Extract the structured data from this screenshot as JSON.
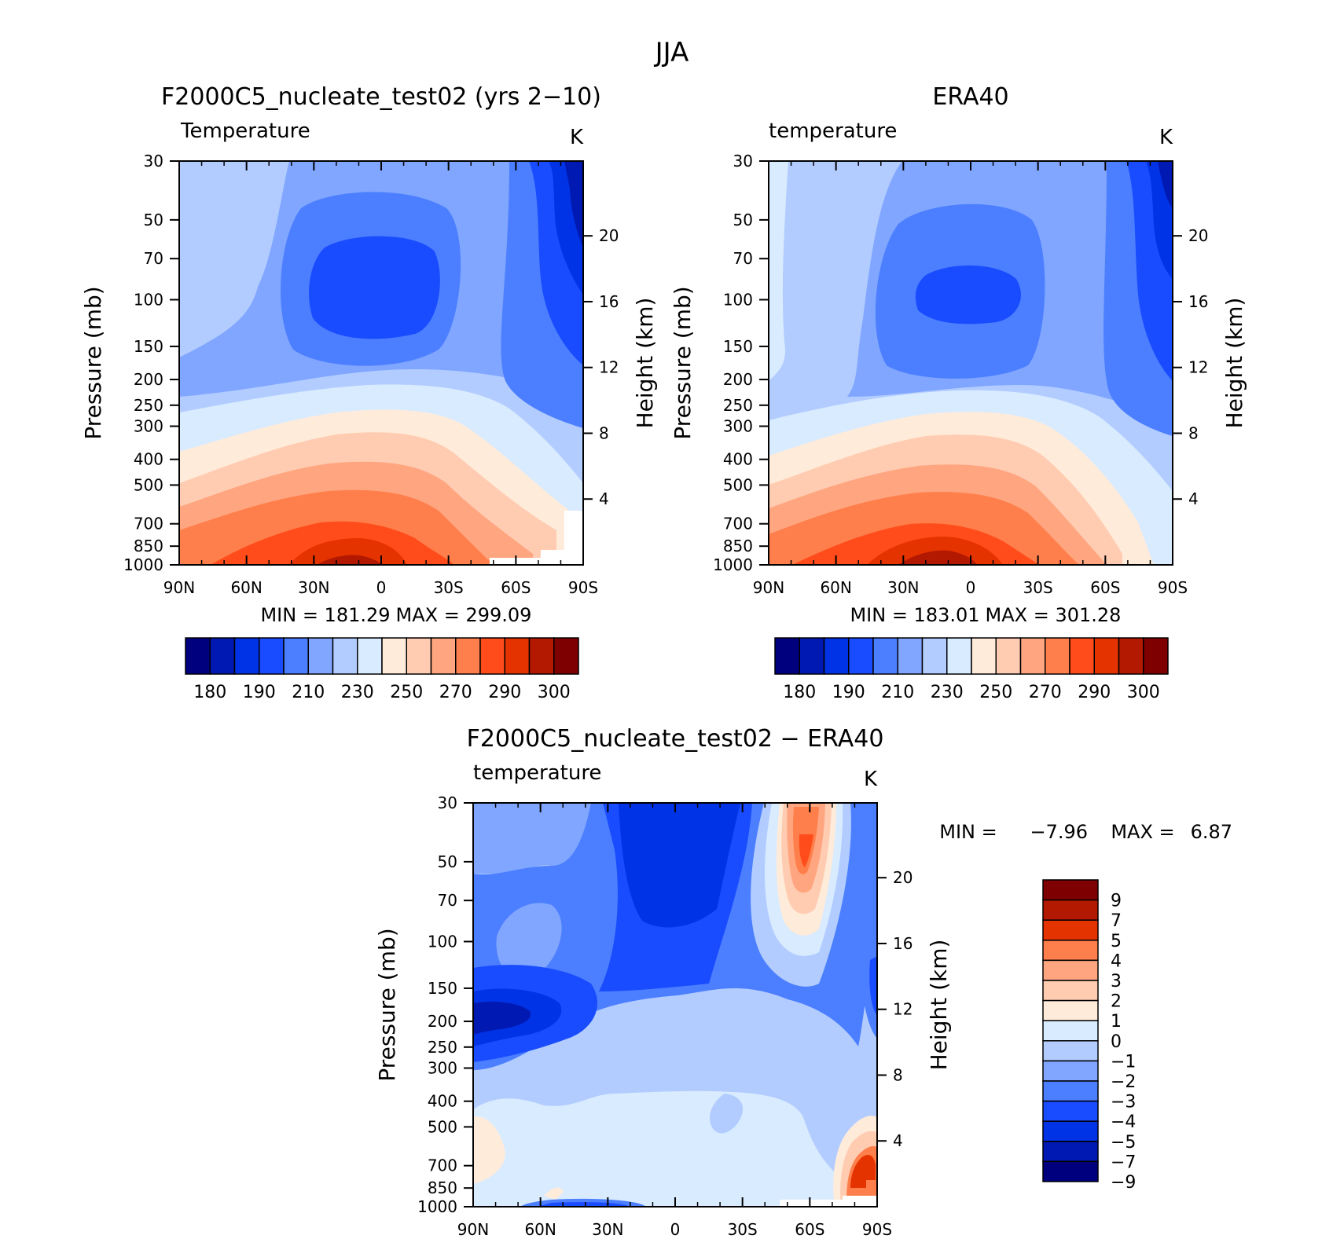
{
  "figure_title": "JJA",
  "colors": {
    "temperature_scale": [
      "#00007f",
      "#0019b2",
      "#0033e5",
      "#1a4cff",
      "#4c7fff",
      "#80a6ff",
      "#b2ccff",
      "#d9ebff",
      "#ffebd9",
      "#ffccb2",
      "#ffa680",
      "#ff7f4c",
      "#ff4c1a",
      "#e53300",
      "#b21900",
      "#7f0000"
    ],
    "difference_scale": [
      "#00007f",
      "#0019b2",
      "#0033e5",
      "#1a4cff",
      "#4c7fff",
      "#80a6ff",
      "#b2ccff",
      "#d9ebff",
      "#ffebd9",
      "#ffccb2",
      "#ffa680",
      "#ff7f4c",
      "#e53300",
      "#b21900",
      "#7f0000"
    ]
  },
  "chart_data": [
    {
      "id": "model",
      "type": "heatmap",
      "title": "F2000C5_nucleate_test02 (yrs 2−10)",
      "variable": "Temperature",
      "units": "K",
      "xlabel": "",
      "ylabel": "Pressure (mb)",
      "y2label": "Height (km)",
      "x_ticks": [
        "90N",
        "60N",
        "30N",
        "0",
        "30S",
        "60S",
        "90S"
      ],
      "y_ticks": [
        30,
        50,
        70,
        100,
        150,
        200,
        250,
        300,
        400,
        500,
        700,
        850,
        1000
      ],
      "y2_ticks": [
        20,
        16,
        12,
        8,
        4
      ],
      "min_label": "MIN  =  181.29",
      "max_label": "MAX  =  299.09",
      "min": 181.29,
      "max": 299.09,
      "colorbar_labels": [
        "180",
        "190",
        "210",
        "230",
        "250",
        "270",
        "290",
        "300"
      ],
      "sample_field": {
        "lat": [
          "90N",
          "60N",
          "30N",
          "0",
          "30S",
          "60S",
          "90S"
        ],
        "levels": [
          30,
          100,
          200,
          500,
          850,
          1000
        ],
        "values": [
          [
            220,
            215,
            205,
            205,
            210,
            200,
            190
          ],
          [
            215,
            210,
            195,
            192,
            205,
            200,
            185
          ],
          [
            220,
            215,
            210,
            210,
            215,
            205,
            200
          ],
          [
            245,
            250,
            258,
            258,
            255,
            240,
            230
          ],
          [
            270,
            278,
            285,
            287,
            280,
            265,
            245
          ],
          [
            275,
            283,
            292,
            296,
            288,
            270,
            250
          ]
        ]
      }
    },
    {
      "id": "obs",
      "type": "heatmap",
      "title": "ERA40",
      "variable": "temperature",
      "units": "K",
      "xlabel": "",
      "ylabel": "Pressure (mb)",
      "y2label": "Height (km)",
      "x_ticks": [
        "90N",
        "60N",
        "30N",
        "0",
        "30S",
        "60S",
        "90S"
      ],
      "y_ticks": [
        30,
        50,
        70,
        100,
        150,
        200,
        250,
        300,
        400,
        500,
        700,
        850,
        1000
      ],
      "y2_ticks": [
        20,
        16,
        12,
        8,
        4
      ],
      "min_label": "MIN  =  183.01",
      "max_label": "MAX  =  301.28",
      "min": 183.01,
      "max": 301.28,
      "colorbar_labels": [
        "180",
        "190",
        "210",
        "230",
        "250",
        "270",
        "290",
        "300"
      ],
      "sample_field": {
        "lat": [
          "90N",
          "60N",
          "30N",
          "0",
          "30S",
          "60S",
          "90S"
        ],
        "levels": [
          30,
          100,
          200,
          500,
          850,
          1000
        ],
        "values": [
          [
            228,
            218,
            212,
            210,
            212,
            205,
            192
          ],
          [
            225,
            215,
            205,
            198,
            208,
            205,
            190
          ],
          [
            225,
            218,
            212,
            210,
            218,
            210,
            205
          ],
          [
            248,
            252,
            258,
            258,
            255,
            242,
            232
          ],
          [
            272,
            280,
            287,
            288,
            282,
            268,
            250
          ],
          [
            278,
            285,
            295,
            298,
            290,
            272,
            255
          ]
        ]
      }
    },
    {
      "id": "diff",
      "type": "heatmap",
      "title": "F2000C5_nucleate_test02 − ERA40",
      "variable": "temperature",
      "units": "K",
      "xlabel": "",
      "ylabel": "Pressure (mb)",
      "y2label": "Height (km)",
      "x_ticks": [
        "90N",
        "60N",
        "30N",
        "0",
        "30S",
        "60S",
        "90S"
      ],
      "y_ticks": [
        30,
        50,
        70,
        100,
        150,
        200,
        250,
        300,
        400,
        500,
        700,
        850,
        1000
      ],
      "y2_ticks": [
        20,
        16,
        12,
        8,
        4
      ],
      "min_label": "MIN  =",
      "min_value": "−7.96",
      "max_label": "MAX  =",
      "max_value": "6.87",
      "min": -7.96,
      "max": 6.87,
      "colorbar_labels": [
        "9",
        "7",
        "5",
        "4",
        "3",
        "2",
        "1",
        "0",
        "−1",
        "−2",
        "−3",
        "−4",
        "−5",
        "−7",
        "−9"
      ],
      "colorbar_boundaries": [
        -9,
        -7,
        -5,
        -4,
        -3,
        -2,
        -1,
        0,
        1,
        2,
        3,
        4,
        5,
        7,
        9
      ]
    }
  ]
}
